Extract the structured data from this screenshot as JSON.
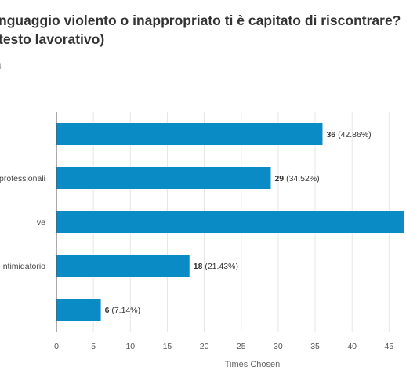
{
  "title_lines": [
    "nguaggio violento o inappropriato ti è capitato di riscontrare?",
    "testo lavorativo)"
  ],
  "subtitle": "4",
  "chart_data": {
    "type": "bar",
    "orientation": "horizontal",
    "categories": [
      "",
      "professionali",
      "ve",
      "ntimidatorio",
      ""
    ],
    "values": [
      36,
      29,
      47,
      18,
      6
    ],
    "data_labels": [
      "36",
      "29",
      "",
      "18",
      "6"
    ],
    "percent_labels": [
      "(42.86%)",
      "(34.52%)",
      "",
      "(21.43%)",
      "(7.14%)"
    ],
    "xlabel": "Times Chosen",
    "xlim": [
      0,
      50
    ],
    "xticks": [
      "0",
      "5",
      "10",
      "15",
      "20",
      "25",
      "30",
      "35",
      "40",
      "45"
    ],
    "grid": true,
    "bar_color": "#0a8bc6",
    "grid_color": "#e6e6e6",
    "axis_color": "#555555"
  }
}
